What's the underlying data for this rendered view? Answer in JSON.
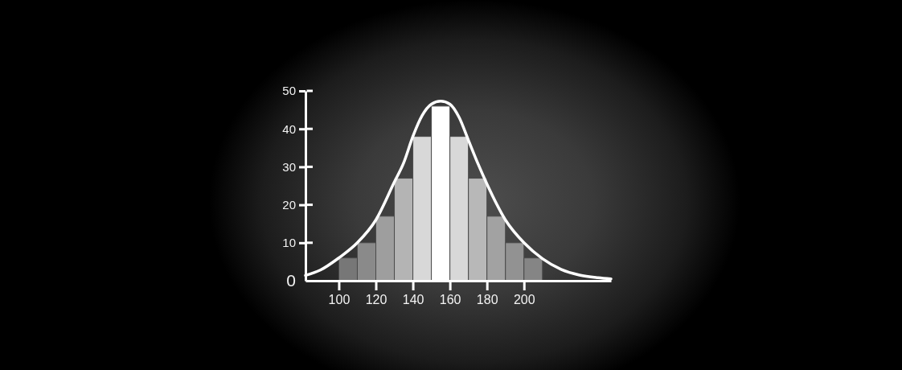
{
  "chart_data": {
    "type": "histogram",
    "bins": [
      100,
      110,
      120,
      130,
      140,
      150,
      160,
      170,
      180,
      190,
      200,
      210
    ],
    "series": [
      {
        "values": [
          6,
          10,
          17,
          27,
          38,
          46,
          38,
          27,
          17,
          10,
          6
        ],
        "colors": [
          "#777777",
          "#8a8a8a",
          "#9e9e9e",
          "#b4b4b4",
          "#d8d8d8",
          "#ffffff",
          "#d8d8d8",
          "#b8b8b8",
          "#a2a2a2",
          "#929292",
          "#858585"
        ]
      },
      {
        "type": "line",
        "color": "#ffffff",
        "x": [
          82,
          90,
          100,
          110,
          120,
          130,
          135,
          140,
          145,
          150,
          155,
          160,
          165,
          170,
          175,
          180,
          190,
          200,
          210,
          220,
          230,
          240,
          247
        ],
        "values": [
          1.4,
          2.8,
          6,
          10,
          16,
          26,
          31,
          38,
          43.5,
          46.5,
          47.3,
          46.5,
          43,
          37,
          31,
          25.5,
          16,
          10,
          5.8,
          3,
          1.5,
          0.8,
          0.5
        ]
      }
    ],
    "xlim": [
      82,
      247
    ],
    "ylim": [
      0,
      50
    ],
    "xticks": [
      100,
      120,
      140,
      160,
      180,
      200
    ],
    "yticks": [
      0,
      10,
      20,
      30,
      40,
      50
    ]
  }
}
